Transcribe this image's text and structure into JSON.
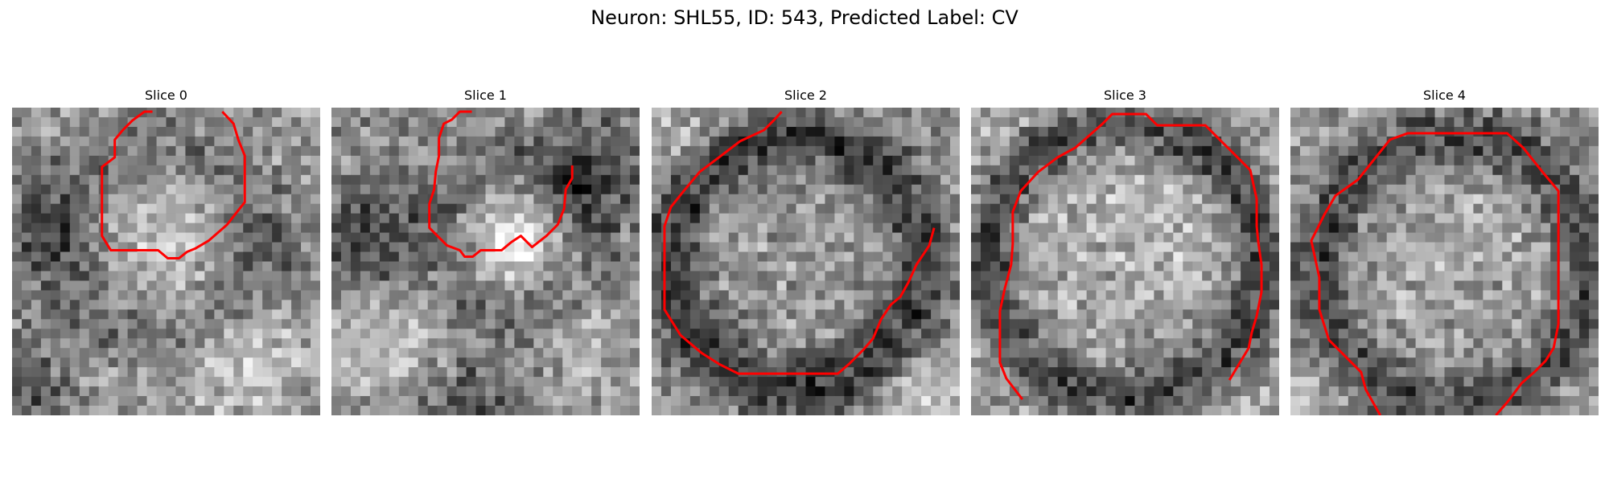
{
  "figure": {
    "title": "Neuron: SHL55, ID: 543, Predicted Label: CV"
  },
  "colors": {
    "contour": "#ff0000",
    "background": "#ffffff"
  },
  "slices": [
    {
      "title": "Slice 0",
      "image": "grayscale-microscopy-patch",
      "overlay": "red-contour"
    },
    {
      "title": "Slice 1",
      "image": "grayscale-microscopy-patch",
      "overlay": "red-contour"
    },
    {
      "title": "Slice 2",
      "image": "grayscale-microscopy-patch",
      "overlay": "red-contour"
    },
    {
      "title": "Slice 3",
      "image": "grayscale-microscopy-patch",
      "overlay": "red-contour"
    },
    {
      "title": "Slice 4",
      "image": "grayscale-microscopy-patch",
      "overlay": "red-contour"
    }
  ]
}
